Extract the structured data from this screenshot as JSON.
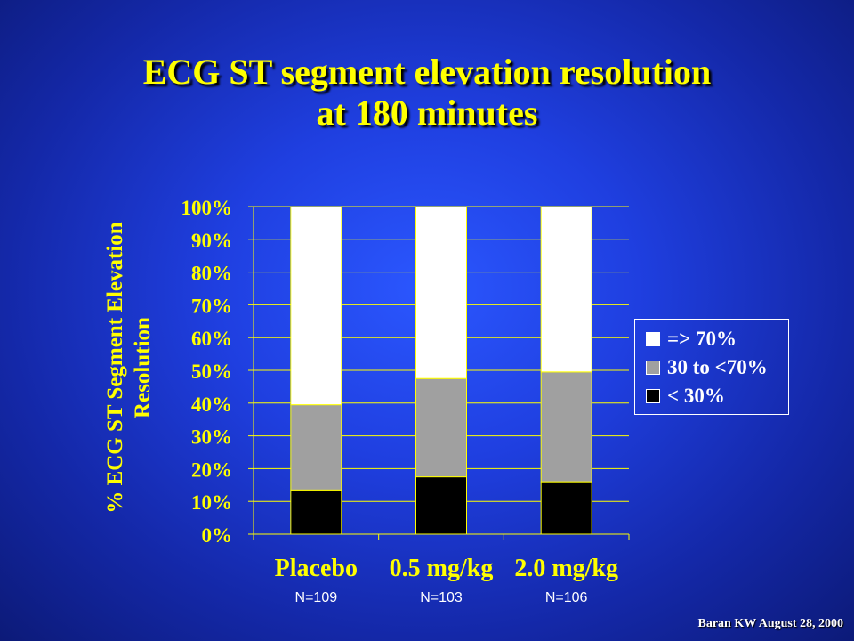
{
  "title": {
    "line1": "ECG ST segment elevation resolution",
    "line2": "at 180 minutes"
  },
  "footnote": "Baran KW August 28, 2000",
  "chart_data": {
    "type": "bar",
    "stacked": true,
    "categories": [
      "Placebo",
      "0.5 mg/kg",
      "2.0 mg/kg"
    ],
    "sample_sizes": [
      "N=109",
      "N=103",
      "N=106"
    ],
    "series": [
      {
        "name": "< 30%",
        "color": "#000000",
        "values": [
          13.5,
          17.5,
          16
        ]
      },
      {
        "name": "30 to <70%",
        "color": "#a0a0a0",
        "values": [
          26,
          30,
          33.5
        ]
      },
      {
        "name": "=> 70%",
        "color": "#ffffff",
        "values": [
          60.5,
          52.5,
          50.5
        ]
      }
    ],
    "legend_order": [
      "=> 70%",
      "30 to <70%",
      "< 30%"
    ],
    "ylabel_line1": "% ECG ST Segment Elevation",
    "ylabel_line2": "Resolution",
    "xlabel": "",
    "ylim": [
      0,
      100
    ],
    "yticks": [
      "0%",
      "10%",
      "20%",
      "30%",
      "40%",
      "50%",
      "60%",
      "70%",
      "80%",
      "90%",
      "100%"
    ],
    "grid": true,
    "legend_position": "right"
  }
}
